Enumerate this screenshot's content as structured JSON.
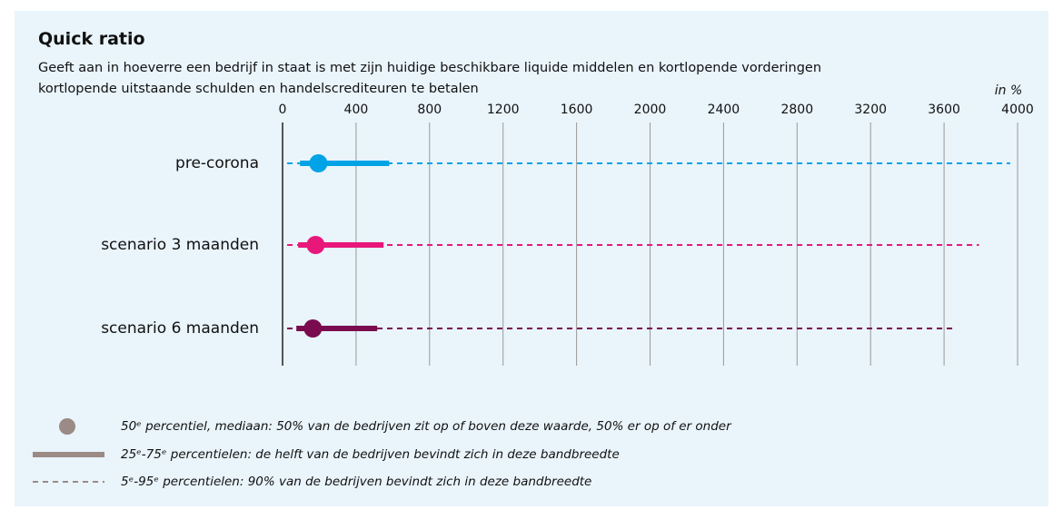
{
  "chart_data": {
    "type": "range",
    "title": "Quick ratio",
    "subtitle": "Geeft aan in hoeverre een bedrijf in staat is met zijn huidige beschikbare liquide middelen en kortlopende vorderingen kortlopende uitstaande schulden en handelscrediteuren te betalen",
    "unit_label": "in %",
    "categories": [
      "pre-corona",
      "scenario 3 maanden",
      "scenario 6 maanden"
    ],
    "colors": [
      "#00a3e6",
      "#e8177a",
      "#7a0b4f"
    ],
    "p5": [
      25,
      25,
      25
    ],
    "p25": [
      95,
      85,
      75
    ],
    "p50": [
      195,
      180,
      165
    ],
    "p75": [
      580,
      550,
      515
    ],
    "p95": [
      3960,
      3790,
      3650
    ],
    "xlim": [
      0,
      4000
    ],
    "xticks": [
      0,
      400,
      800,
      1200,
      1600,
      2000,
      2400,
      2800,
      3200,
      3600,
      4000
    ],
    "grid": true,
    "legend": [
      "50ᵉ percentiel, mediaan: 50% van de bedrijven zit op of boven deze waarde, 50% er op of er onder",
      "25ᵉ-75ᵉ percentielen: de helft van de bedrijven bevindt zich in deze bandbreedte",
      "5ᵉ-95ᵉ percentielen: 90% van de bedrijven bevindt zich in deze bandbreedte"
    ]
  }
}
